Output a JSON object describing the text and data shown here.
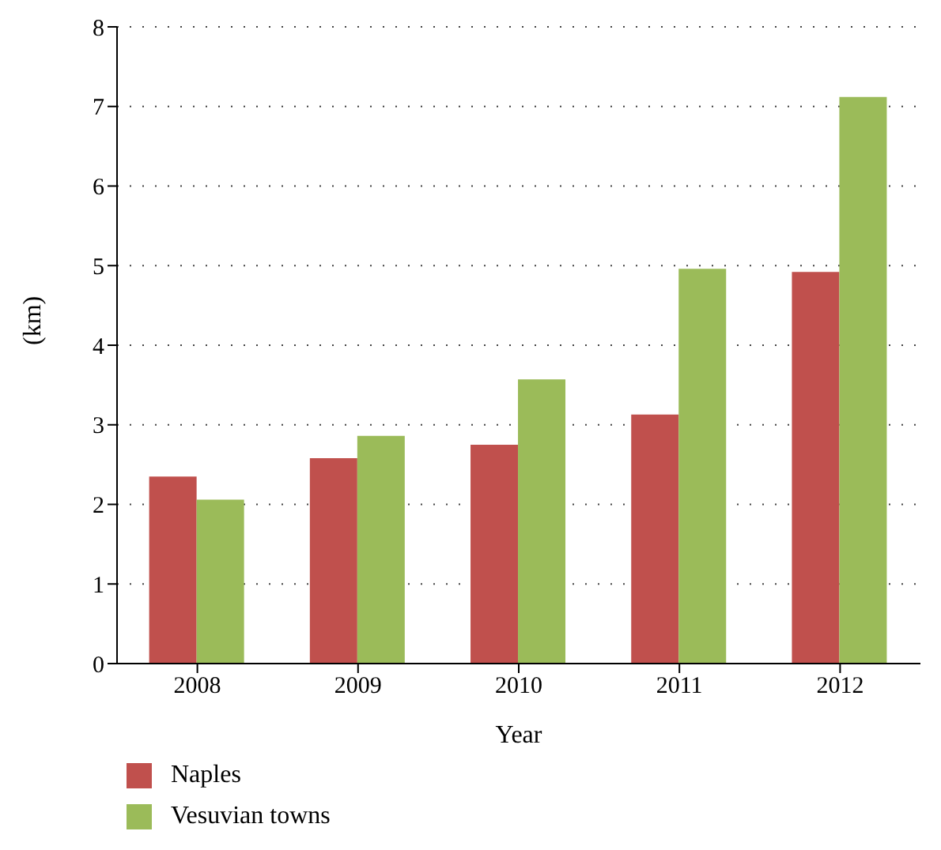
{
  "chart_data": {
    "type": "bar",
    "xlabel": "Year",
    "ylabel": "(km)",
    "categories": [
      "2008",
      "2009",
      "2010",
      "2011",
      "2012"
    ],
    "series": [
      {
        "name": "Naples",
        "color": "#c0504d",
        "values": [
          2.35,
          2.58,
          2.75,
          3.13,
          4.92
        ]
      },
      {
        "name": "Vesuvian towns",
        "color": "#9bbb59",
        "values": [
          2.06,
          2.86,
          3.57,
          4.96,
          7.12
        ]
      }
    ],
    "ylim": [
      0,
      8
    ],
    "yticks": [
      0,
      1,
      2,
      3,
      4,
      5,
      6,
      7,
      8
    ],
    "grid": "y",
    "legend": "bottom left"
  }
}
